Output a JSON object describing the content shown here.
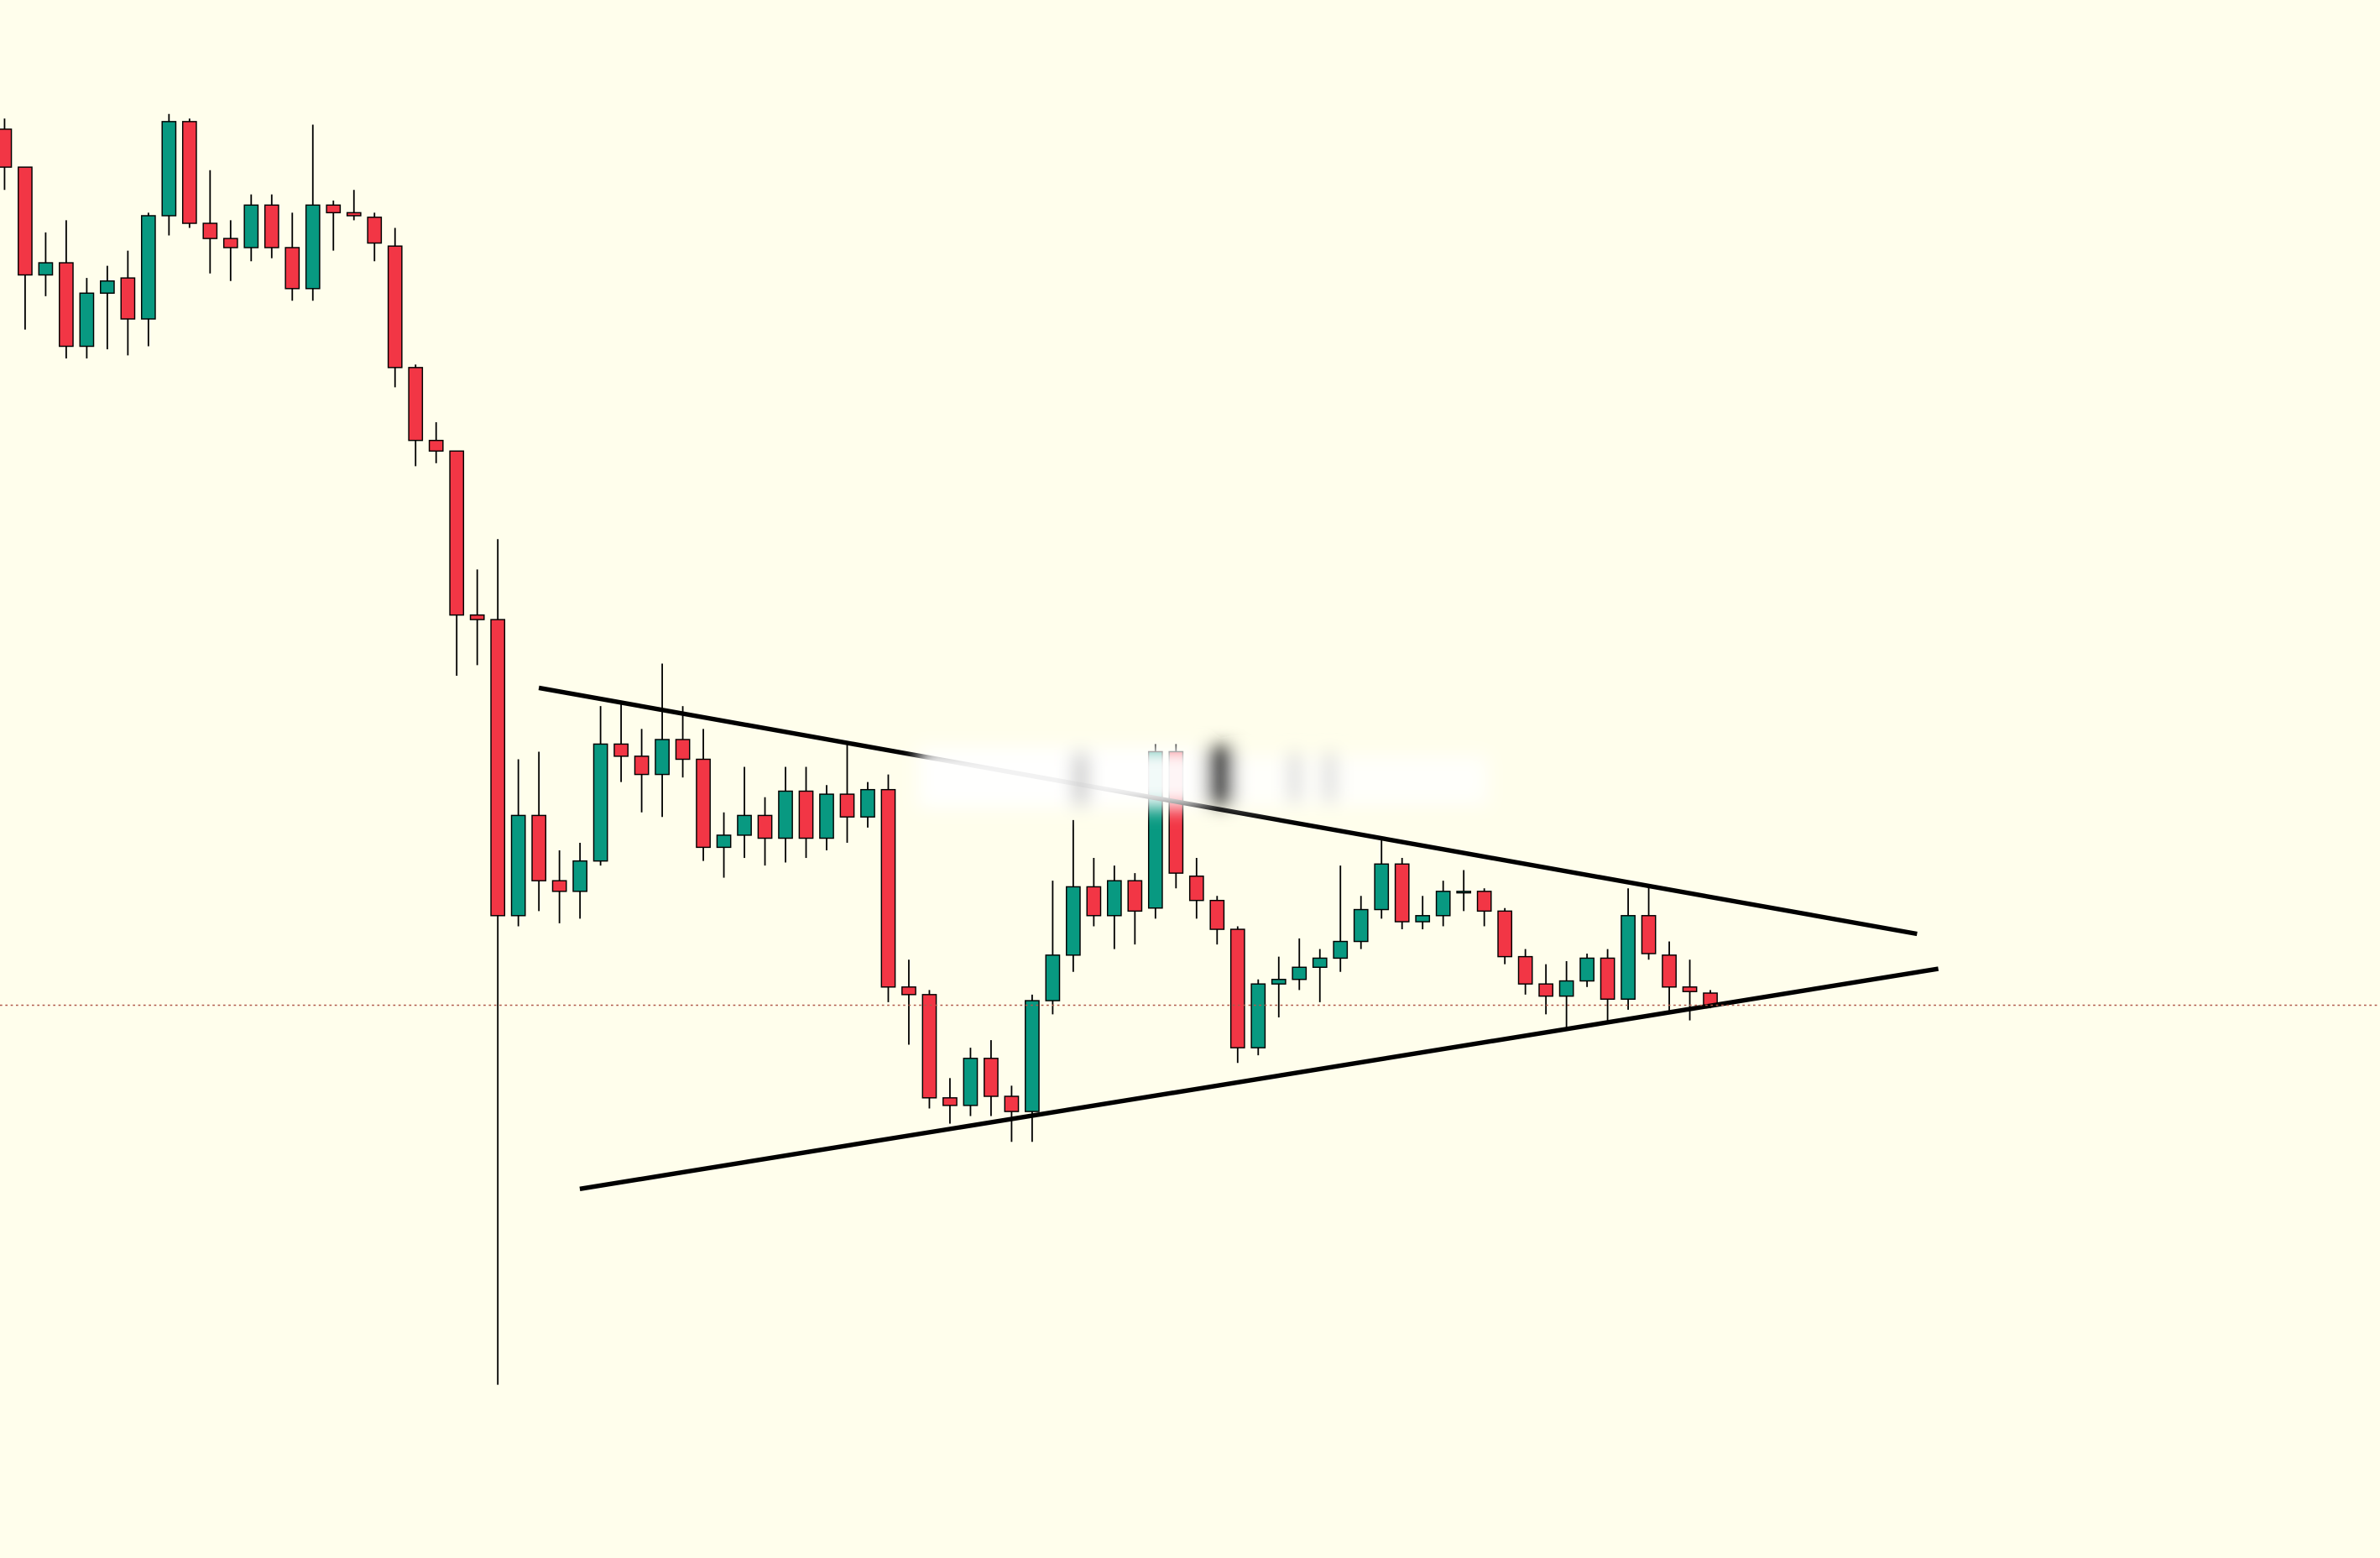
{
  "chart_data": {
    "type": "candlestick",
    "open": [
      941,
      916,
      845,
      853,
      798,
      833,
      843,
      816,
      884,
      946,
      879,
      869,
      863,
      891,
      863,
      836,
      891,
      886,
      883,
      864,
      784,
      736,
      729,
      621,
      618,
      423,
      489,
      446,
      439,
      459,
      536,
      528,
      516,
      539,
      526,
      468,
      476,
      489,
      474,
      505,
      474,
      503,
      488,
      506,
      376,
      371,
      303,
      298,
      329,
      304,
      294,
      367,
      397,
      442,
      423,
      446,
      428,
      531,
      449,
      433,
      414,
      336,
      378,
      381,
      389,
      395,
      406,
      427,
      457,
      419,
      423,
      438,
      439,
      426,
      396,
      378,
      370,
      380,
      395,
      368,
      423,
      397,
      376,
      372
    ],
    "high": [
      948,
      916,
      873,
      881,
      843,
      851,
      861,
      886,
      951,
      948,
      914,
      881,
      898,
      898,
      886,
      944,
      894,
      901,
      886,
      876,
      786,
      748,
      729,
      651,
      671,
      526,
      531,
      466,
      471,
      561,
      564,
      546,
      589,
      561,
      546,
      491,
      521,
      501,
      521,
      521,
      509,
      536,
      511,
      516,
      394,
      374,
      316,
      336,
      341,
      311,
      371,
      446,
      486,
      461,
      456,
      451,
      536,
      536,
      461,
      436,
      416,
      381,
      396,
      408,
      401,
      456,
      436,
      473,
      461,
      436,
      446,
      453,
      441,
      428,
      401,
      391,
      393,
      398,
      401,
      441,
      443,
      406,
      394,
      374
    ],
    "low": [
      901,
      809,
      831,
      790,
      790,
      796,
      792,
      798,
      871,
      876,
      846,
      841,
      854,
      856,
      828,
      828,
      861,
      881,
      854,
      771,
      719,
      721,
      581,
      588,
      114,
      416,
      426,
      418,
      421,
      456,
      511,
      491,
      488,
      514,
      459,
      448,
      461,
      456,
      458,
      461,
      466,
      471,
      481,
      366,
      338,
      296,
      286,
      291,
      291,
      274,
      274,
      358,
      386,
      416,
      401,
      404,
      421,
      441,
      421,
      404,
      326,
      331,
      356,
      374,
      366,
      386,
      401,
      421,
      414,
      414,
      416,
      426,
      416,
      391,
      371,
      358,
      348,
      376,
      354,
      361,
      394,
      358,
      354,
      362
    ],
    "close": [
      916,
      845,
      853,
      798,
      833,
      841,
      816,
      884,
      946,
      879,
      869,
      863,
      891,
      863,
      836,
      891,
      886,
      884,
      866,
      784,
      736,
      729,
      621,
      618,
      423,
      489,
      446,
      439,
      459,
      536,
      528,
      516,
      539,
      526,
      468,
      476,
      489,
      474,
      505,
      474,
      503,
      488,
      506,
      376,
      371,
      303,
      298,
      329,
      304,
      294,
      367,
      397,
      442,
      423,
      446,
      426,
      531,
      451,
      433,
      414,
      336,
      378,
      381,
      389,
      395,
      406,
      427,
      457,
      419,
      423,
      439,
      439,
      426,
      396,
      378,
      370,
      380,
      395,
      368,
      423,
      398,
      376,
      373,
      364
    ],
    "up_color": "#089981",
    "down_color": "#f23645",
    "ylim": [
      0,
      1026
    ]
  }
}
